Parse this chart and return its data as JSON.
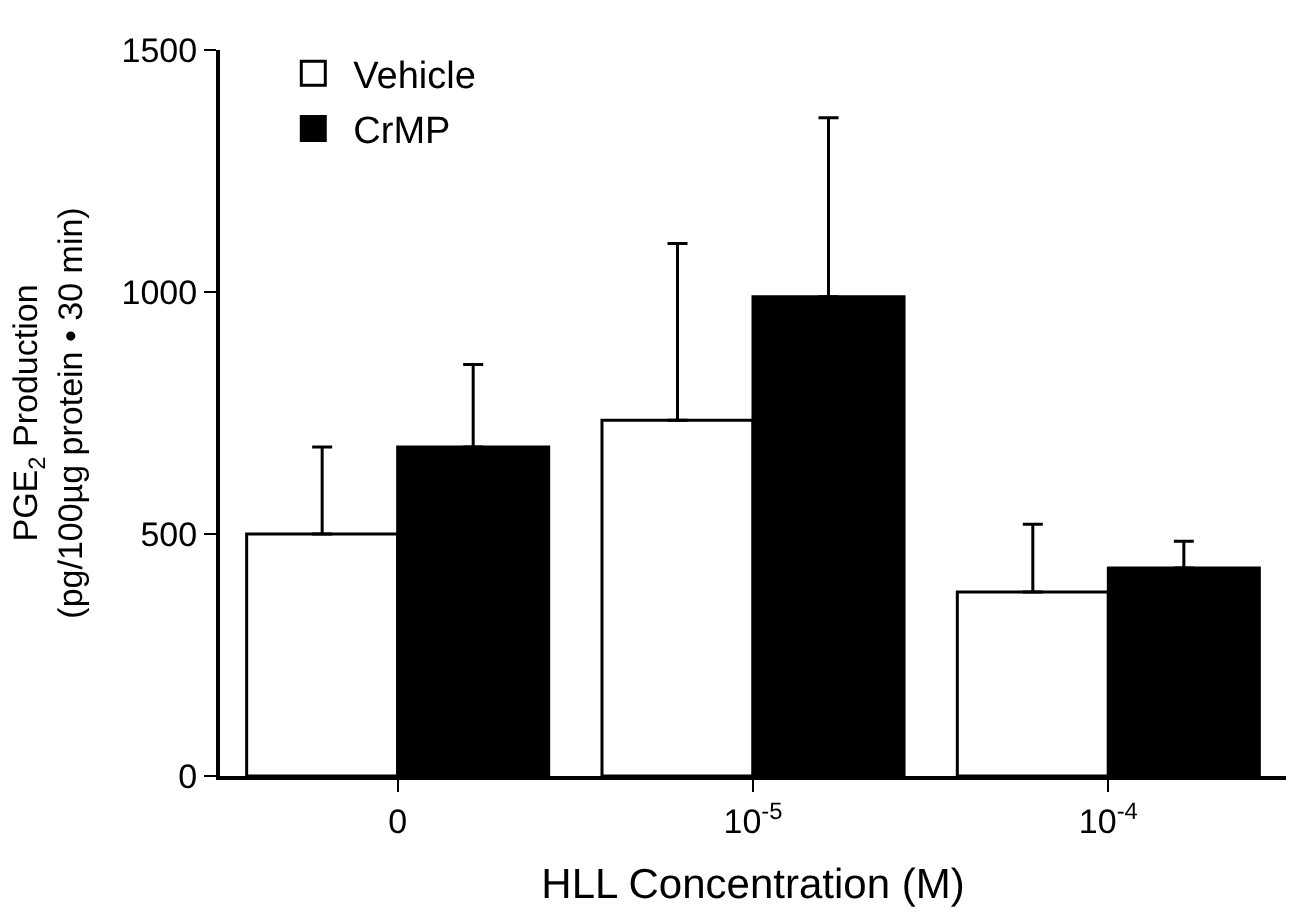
{
  "chart_data": {
    "type": "bar",
    "xlabel": "HLL Concentration (M)",
    "ylabel": "PGE$_{2}$ Production\n(pg/100µg protein • 30 min)",
    "categories": [
      "0",
      "10$^{-5}$",
      "10$^{-4}$"
    ],
    "series": [
      {
        "name": "Vehicle",
        "color": "#ffffff",
        "values": [
          500,
          735,
          380
        ],
        "errors": [
          [
            500,
            680
          ],
          [
            735,
            1100
          ],
          [
            380,
            520
          ]
        ]
      },
      {
        "name": "CrMP",
        "color": "#000000",
        "values": [
          680,
          990,
          430
        ],
        "errors": [
          [
            680,
            850
          ],
          [
            990,
            1360
          ],
          [
            430,
            485
          ]
        ]
      }
    ],
    "ylim": [
      0,
      1500
    ],
    "yticks": [
      0,
      500,
      1000,
      1500
    ],
    "legend": "top left"
  }
}
